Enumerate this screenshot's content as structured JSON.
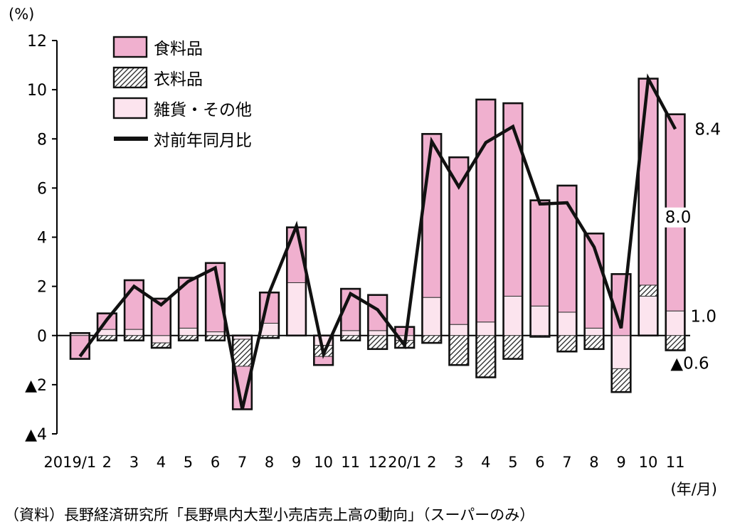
{
  "chart_data": {
    "type": "bar",
    "stacked": true,
    "y_unit": "(%)",
    "x_unit": "(年/月)",
    "ylim": [
      -4,
      12
    ],
    "yticks": [
      {
        "value": 12,
        "label": "12"
      },
      {
        "value": 10,
        "label": "10"
      },
      {
        "value": 8,
        "label": "8"
      },
      {
        "value": 6,
        "label": "6"
      },
      {
        "value": 4,
        "label": "4"
      },
      {
        "value": 2,
        "label": "2"
      },
      {
        "value": 0,
        "label": "0"
      },
      {
        "value": -2,
        "label": "▲2"
      },
      {
        "value": -4,
        "label": "▲4"
      }
    ],
    "categories": [
      "2019/1",
      "2",
      "3",
      "4",
      "5",
      "6",
      "7",
      "8",
      "9",
      "10",
      "11",
      "12",
      "20/1",
      "2",
      "3",
      "4",
      "5",
      "6",
      "7",
      "8",
      "9",
      "10",
      "11"
    ],
    "series": [
      {
        "name": "食料品",
        "kind": "bar",
        "color": "#f0b0cf",
        "values": [
          -0.95,
          0.65,
          2.0,
          1.5,
          2.05,
          2.8,
          -1.75,
          1.25,
          2.25,
          -0.35,
          1.7,
          1.45,
          0.35,
          6.65,
          6.8,
          9.05,
          7.85,
          4.3,
          5.15,
          3.85,
          2.5,
          8.4,
          8.0
        ]
      },
      {
        "name": "衣料品",
        "kind": "bar",
        "pattern": "hatch",
        "values": [
          0.0,
          -0.2,
          -0.2,
          -0.2,
          -0.2,
          -0.2,
          -1.1,
          -0.1,
          0.0,
          -0.45,
          -0.2,
          -0.55,
          -0.3,
          -0.3,
          -1.2,
          -1.7,
          -0.95,
          -0.05,
          -0.65,
          -0.55,
          -0.95,
          0.45,
          -0.6
        ]
      },
      {
        "name": "雑貨・その他",
        "kind": "bar",
        "color": "#fce4ee",
        "values": [
          0.1,
          0.25,
          0.25,
          -0.3,
          0.3,
          0.15,
          -0.15,
          0.5,
          2.15,
          -0.4,
          0.2,
          0.2,
          -0.2,
          1.55,
          0.45,
          0.55,
          1.6,
          1.2,
          0.95,
          0.3,
          -1.35,
          1.6,
          1.0
        ]
      },
      {
        "name": "対前年同月比",
        "kind": "line",
        "color": "#111111",
        "values": [
          -0.85,
          0.65,
          2.0,
          1.25,
          2.2,
          2.75,
          -3.0,
          1.75,
          4.45,
          -0.75,
          1.7,
          1.05,
          -0.4,
          7.9,
          6.05,
          7.85,
          8.5,
          5.35,
          5.4,
          3.6,
          0.3,
          10.45,
          8.4
        ]
      }
    ],
    "annotations": [
      {
        "text": "8.4",
        "target": "対前年同月比"
      },
      {
        "text": "8.0",
        "target": "食料品"
      },
      {
        "text": "1.0",
        "target": "雑貨・その他"
      },
      {
        "text": "▲0.6",
        "target": "衣料品"
      }
    ]
  },
  "source_note": "（資料）長野経済研究所「長野県内大型小売店売上高の動向」（スーパーのみ）"
}
